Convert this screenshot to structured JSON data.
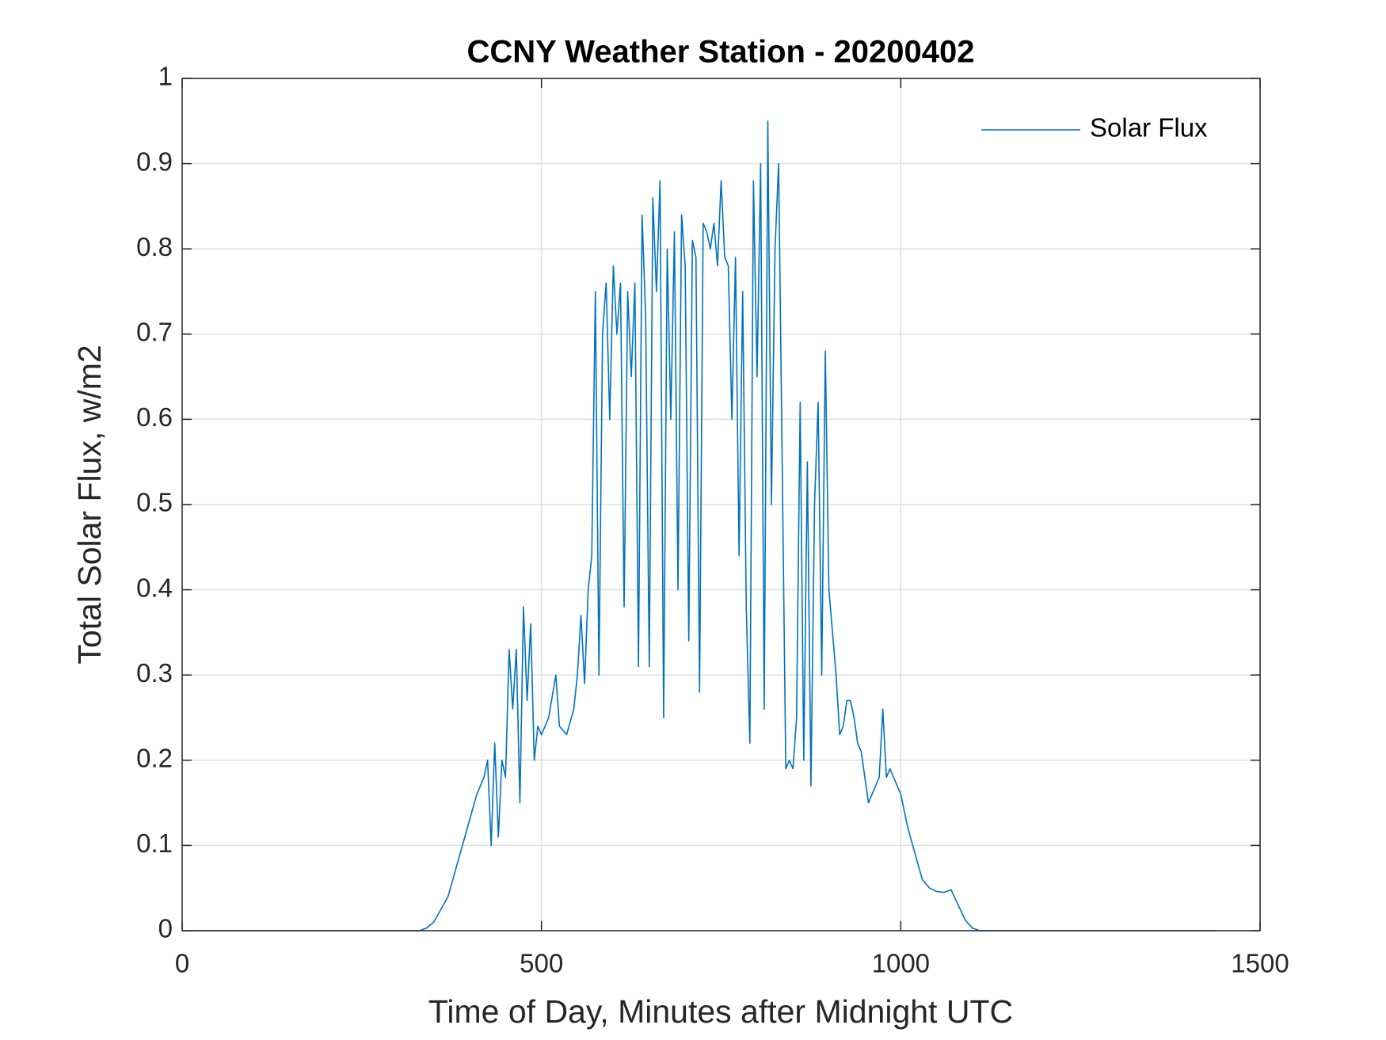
{
  "chart_data": {
    "type": "line",
    "title": "CCNY Weather Station - 20200402",
    "xlabel": "Time of Day, Minutes after Midnight UTC",
    "ylabel": "Total Solar Flux, w/m2",
    "xlim": [
      0,
      1500
    ],
    "xticks": [
      0,
      500,
      1000,
      1500
    ],
    "ylim": [
      0,
      1
    ],
    "yticks": [
      0,
      0.1,
      0.2,
      0.3,
      0.4,
      0.5,
      0.6,
      0.7,
      0.8,
      0.9,
      1
    ],
    "grid": true,
    "legend": "upper right",
    "series": [
      {
        "name": "Solar Flux",
        "color": "#0072bd",
        "x": [
          0,
          330,
          340,
          350,
          360,
          370,
          380,
          390,
          400,
          410,
          420,
          425,
          430,
          435,
          440,
          445,
          450,
          455,
          460,
          465,
          470,
          475,
          480,
          485,
          490,
          495,
          500,
          510,
          520,
          525,
          535,
          545,
          550,
          555,
          560,
          565,
          570,
          575,
          580,
          585,
          590,
          595,
          600,
          605,
          610,
          615,
          620,
          625,
          630,
          635,
          640,
          645,
          650,
          655,
          660,
          665,
          670,
          675,
          680,
          685,
          690,
          695,
          700,
          705,
          710,
          715,
          720,
          725,
          730,
          735,
          740,
          745,
          750,
          755,
          760,
          765,
          770,
          775,
          780,
          785,
          790,
          795,
          800,
          805,
          810,
          815,
          820,
          825,
          830,
          835,
          840,
          845,
          850,
          855,
          860,
          865,
          870,
          875,
          880,
          885,
          890,
          895,
          900,
          905,
          910,
          915,
          920,
          925,
          930,
          935,
          940,
          945,
          950,
          955,
          960,
          965,
          970,
          975,
          980,
          985,
          990,
          1000,
          1010,
          1020,
          1030,
          1040,
          1050,
          1060,
          1070,
          1080,
          1090,
          1100,
          1110,
          1440
        ],
        "values": [
          0,
          0,
          0.003,
          0.01,
          0.025,
          0.04,
          0.07,
          0.1,
          0.13,
          0.16,
          0.18,
          0.2,
          0.1,
          0.22,
          0.11,
          0.2,
          0.18,
          0.33,
          0.26,
          0.33,
          0.15,
          0.38,
          0.27,
          0.36,
          0.2,
          0.24,
          0.23,
          0.25,
          0.3,
          0.24,
          0.23,
          0.26,
          0.3,
          0.37,
          0.29,
          0.4,
          0.44,
          0.75,
          0.3,
          0.7,
          0.76,
          0.6,
          0.78,
          0.7,
          0.76,
          0.38,
          0.75,
          0.65,
          0.76,
          0.31,
          0.84,
          0.72,
          0.31,
          0.86,
          0.75,
          0.88,
          0.25,
          0.8,
          0.6,
          0.82,
          0.4,
          0.84,
          0.78,
          0.34,
          0.81,
          0.79,
          0.28,
          0.83,
          0.82,
          0.8,
          0.83,
          0.78,
          0.88,
          0.79,
          0.78,
          0.6,
          0.79,
          0.44,
          0.75,
          0.38,
          0.22,
          0.88,
          0.65,
          0.9,
          0.26,
          0.95,
          0.5,
          0.8,
          0.9,
          0.55,
          0.19,
          0.2,
          0.19,
          0.25,
          0.62,
          0.2,
          0.55,
          0.17,
          0.5,
          0.62,
          0.3,
          0.68,
          0.4,
          0.35,
          0.3,
          0.23,
          0.24,
          0.27,
          0.27,
          0.25,
          0.22,
          0.21,
          0.18,
          0.15,
          0.16,
          0.17,
          0.18,
          0.26,
          0.18,
          0.19,
          0.18,
          0.16,
          0.12,
          0.09,
          0.06,
          0.05,
          0.046,
          0.045,
          0.048,
          0.03,
          0.012,
          0.003,
          0,
          0
        ]
      }
    ]
  }
}
